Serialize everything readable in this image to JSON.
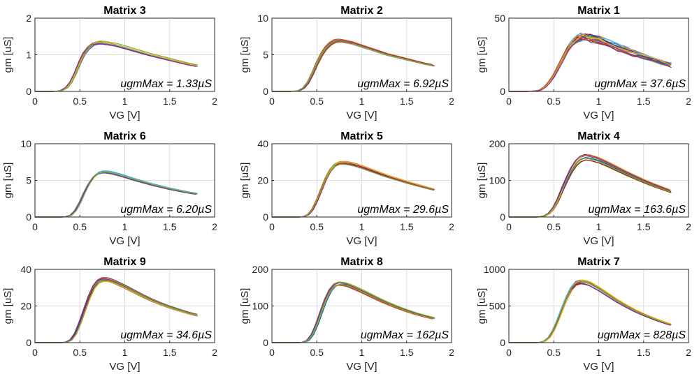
{
  "figure": {
    "colors": [
      "#0072BD",
      "#D95319",
      "#EDB120",
      "#7E2F8E",
      "#77AC30",
      "#4DBEEE",
      "#A2142F"
    ],
    "icons": []
  },
  "chart_data": [
    {
      "type": "line",
      "title": "Matrix 3",
      "xlabel": "VG [V]",
      "ylabel": "gm [uS]",
      "xlim": [
        0,
        2
      ],
      "ylim": [
        0,
        2
      ],
      "xticks": [
        "0",
        "0.5",
        "1",
        "1.5",
        "2"
      ],
      "yticks": [
        "0",
        "1",
        "2"
      ],
      "grid": true,
      "annotation": "ugmMax = 1.33µS",
      "x": [
        0,
        0.2,
        0.25,
        0.3,
        0.35,
        0.4,
        0.45,
        0.5,
        0.55,
        0.6,
        0.65,
        0.7,
        0.75,
        0.8,
        0.9,
        1,
        1.1,
        1.2,
        1.3,
        1.4,
        1.5,
        1.6,
        1.7,
        1.8
      ],
      "series": [
        {
          "values": [
            0,
            0,
            0.01,
            0.03,
            0.1,
            0.25,
            0.5,
            0.8,
            1.05,
            1.2,
            1.3,
            1.33,
            1.33,
            1.31,
            1.27,
            1.2,
            1.13,
            1.06,
            0.99,
            0.93,
            0.87,
            0.81,
            0.75,
            0.7
          ]
        }
      ]
    },
    {
      "type": "line",
      "title": "Matrix 2",
      "xlabel": "VG [V]",
      "ylabel": "gm [uS]",
      "xlim": [
        0,
        2
      ],
      "ylim": [
        0,
        10
      ],
      "xticks": [
        "0",
        "0.5",
        "1",
        "1.5",
        "2"
      ],
      "yticks": [
        "0",
        "5",
        "10"
      ],
      "grid": true,
      "annotation": "ugmMax = 6.92µS",
      "x": [
        0,
        0.2,
        0.25,
        0.3,
        0.35,
        0.4,
        0.45,
        0.5,
        0.55,
        0.6,
        0.65,
        0.7,
        0.75,
        0.8,
        0.9,
        1,
        1.1,
        1.2,
        1.3,
        1.4,
        1.5,
        1.6,
        1.7,
        1.8
      ],
      "series": [
        {
          "values": [
            0,
            0,
            0.03,
            0.12,
            0.45,
            1.2,
            2.4,
            3.8,
            5,
            5.9,
            6.5,
            6.85,
            6.92,
            6.85,
            6.6,
            6.2,
            5.8,
            5.4,
            5,
            4.7,
            4.4,
            4.1,
            3.8,
            3.55
          ]
        }
      ]
    },
    {
      "type": "line",
      "title": "Matrix 1",
      "xlabel": "VG [V]",
      "ylabel": "gm [uS]",
      "xlim": [
        0,
        2
      ],
      "ylim": [
        0,
        50
      ],
      "xticks": [
        "0",
        "0.5",
        "1",
        "1.5",
        "2"
      ],
      "yticks": [
        "0",
        "50"
      ],
      "grid": true,
      "annotation": "ugmMax = 37.6µS",
      "x": [
        0,
        0.2,
        0.3,
        0.35,
        0.4,
        0.45,
        0.5,
        0.55,
        0.6,
        0.65,
        0.7,
        0.75,
        0.8,
        0.85,
        0.9,
        1,
        1.1,
        1.2,
        1.3,
        1.4,
        1.5,
        1.6,
        1.7,
        1.8
      ],
      "series": [
        {
          "values": [
            0,
            0,
            0.3,
            1,
            3,
            6.5,
            11,
            17,
            23,
            28.5,
            33,
            36,
            37.4,
            37.6,
            37.2,
            35.5,
            33,
            30.5,
            28,
            26,
            24,
            22,
            20,
            18
          ]
        }
      ]
    },
    {
      "type": "line",
      "title": "Matrix 6",
      "xlabel": "VG [V]",
      "ylabel": "gm [uS]",
      "xlim": [
        0,
        2
      ],
      "ylim": [
        0,
        10
      ],
      "xticks": [
        "0",
        "0.5",
        "1",
        "1.5",
        "2"
      ],
      "yticks": [
        "0",
        "5",
        "10"
      ],
      "grid": true,
      "annotation": "ugmMax = 6.20µS",
      "x": [
        0,
        0.3,
        0.35,
        0.4,
        0.45,
        0.5,
        0.55,
        0.6,
        0.65,
        0.7,
        0.75,
        0.8,
        0.85,
        0.9,
        1,
        1.1,
        1.2,
        1.3,
        1.4,
        1.5,
        1.6,
        1.7,
        1.8
      ],
      "series": [
        {
          "values": [
            0,
            0,
            0.05,
            0.25,
            0.9,
            2,
            3.4,
            4.6,
            5.5,
            6,
            6.2,
            6.2,
            6.1,
            5.95,
            5.6,
            5.2,
            4.85,
            4.5,
            4.2,
            3.9,
            3.65,
            3.4,
            3.2
          ]
        }
      ]
    },
    {
      "type": "line",
      "title": "Matrix 5",
      "xlabel": "VG [V]",
      "ylabel": "gm [uS]",
      "xlim": [
        0,
        2
      ],
      "ylim": [
        0,
        40
      ],
      "xticks": [
        "0",
        "0.5",
        "1",
        "1.5",
        "2"
      ],
      "yticks": [
        "0",
        "20",
        "40"
      ],
      "grid": true,
      "annotation": "ugmMax = 29.6µS",
      "x": [
        0,
        0.3,
        0.35,
        0.4,
        0.45,
        0.5,
        0.55,
        0.6,
        0.65,
        0.7,
        0.75,
        0.8,
        0.85,
        0.9,
        1,
        1.1,
        1.2,
        1.3,
        1.4,
        1.5,
        1.6,
        1.7,
        1.8
      ],
      "series": [
        {
          "values": [
            0,
            0,
            0.2,
            1.2,
            4,
            9,
            15,
            21,
            25.5,
            28.3,
            29.5,
            29.6,
            29.3,
            28.8,
            27.3,
            25.5,
            23.7,
            22,
            20.5,
            19,
            17.6,
            16.3,
            15
          ]
        }
      ]
    },
    {
      "type": "line",
      "title": "Matrix 4",
      "xlabel": "VG [V]",
      "ylabel": "gm [uS]",
      "xlim": [
        0,
        2
      ],
      "ylim": [
        0,
        200
      ],
      "xticks": [
        "0",
        "0.5",
        "1",
        "1.5",
        "2"
      ],
      "yticks": [
        "0",
        "100",
        "200"
      ],
      "grid": true,
      "annotation": "ugmMax = 163.6µS",
      "x": [
        0,
        0.3,
        0.35,
        0.4,
        0.45,
        0.5,
        0.55,
        0.6,
        0.65,
        0.7,
        0.75,
        0.8,
        0.85,
        0.9,
        1,
        1.1,
        1.2,
        1.3,
        1.4,
        1.5,
        1.6,
        1.7,
        1.8
      ],
      "series": [
        {
          "values": [
            0,
            0,
            0.5,
            3,
            10,
            25,
            48,
            78,
            105,
            130,
            148,
            159,
            163.6,
            162,
            155,
            144,
            132,
            120,
            109,
            98,
            88,
            79,
            70
          ]
        }
      ]
    },
    {
      "type": "line",
      "title": "Matrix 9",
      "xlabel": "VG [V]",
      "ylabel": "gm [uS]",
      "xlim": [
        0,
        2
      ],
      "ylim": [
        0,
        40
      ],
      "xticks": [
        "0",
        "0.5",
        "1",
        "1.5",
        "2"
      ],
      "yticks": [
        "0",
        "20",
        "40"
      ],
      "grid": true,
      "annotation": "ugmMax = 34.6µS",
      "x": [
        0,
        0.3,
        0.35,
        0.4,
        0.45,
        0.5,
        0.55,
        0.6,
        0.65,
        0.7,
        0.75,
        0.8,
        0.85,
        0.9,
        1,
        1.1,
        1.2,
        1.3,
        1.4,
        1.5,
        1.6,
        1.7,
        1.8
      ],
      "series": [
        {
          "values": [
            0,
            0,
            0.3,
            1.5,
            5,
            11,
            18,
            25,
            30.5,
            33.5,
            34.6,
            34.5,
            33.8,
            32.8,
            30.5,
            28,
            25.5,
            23.2,
            21.2,
            19.4,
            17.8,
            16.3,
            15
          ]
        }
      ]
    },
    {
      "type": "line",
      "title": "Matrix 8",
      "xlabel": "VG [V]",
      "ylabel": "gm [uS]",
      "xlim": [
        0,
        2
      ],
      "ylim": [
        0,
        200
      ],
      "xticks": [
        "0",
        "0.5",
        "1",
        "1.5",
        "2"
      ],
      "yticks": [
        "0",
        "100",
        "200"
      ],
      "grid": true,
      "annotation": "ugmMax = 162µS",
      "x": [
        0,
        0.3,
        0.35,
        0.4,
        0.45,
        0.5,
        0.55,
        0.6,
        0.65,
        0.7,
        0.75,
        0.8,
        0.85,
        0.9,
        1,
        1.1,
        1.2,
        1.3,
        1.4,
        1.5,
        1.6,
        1.7,
        1.8
      ],
      "series": [
        {
          "values": [
            0,
            0,
            1,
            6,
            22,
            50,
            85,
            118,
            143,
            157,
            162,
            161,
            158,
            153,
            142,
            130,
            118,
            107,
            97,
            88,
            80,
            73,
            67
          ]
        }
      ]
    },
    {
      "type": "line",
      "title": "Matrix 7",
      "xlabel": "VG [V]",
      "ylabel": "gm [uS]",
      "xlim": [
        0,
        2
      ],
      "ylim": [
        0,
        1000
      ],
      "xticks": [
        "0",
        "0.5",
        "1",
        "1.5",
        "2"
      ],
      "yticks": [
        "0",
        "500",
        "1000"
      ],
      "grid": true,
      "annotation": "ugmMax = 828µS",
      "x": [
        0,
        0.3,
        0.35,
        0.4,
        0.45,
        0.5,
        0.55,
        0.6,
        0.65,
        0.7,
        0.75,
        0.8,
        0.85,
        0.9,
        1,
        1.1,
        1.2,
        1.3,
        1.4,
        1.5,
        1.6,
        1.7,
        1.8
      ],
      "series": [
        {
          "values": [
            0,
            0,
            3,
            20,
            70,
            170,
            310,
            470,
            620,
            740,
            810,
            828,
            820,
            800,
            730,
            650,
            570,
            500,
            435,
            380,
            330,
            285,
            245
          ]
        }
      ]
    }
  ]
}
